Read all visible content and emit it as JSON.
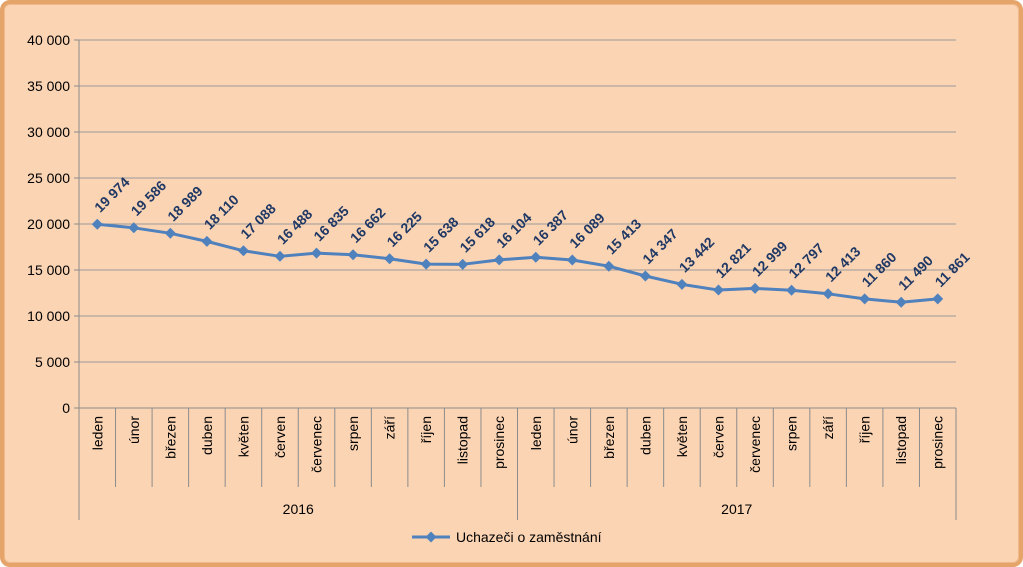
{
  "chart_data": {
    "type": "line",
    "title": "",
    "xlabel": "",
    "ylabel": "",
    "ylim": [
      0,
      40000
    ],
    "yticks": [
      0,
      5000,
      10000,
      15000,
      20000,
      25000,
      30000,
      35000,
      40000
    ],
    "ytick_labels": [
      "0",
      "5 000",
      "10 000",
      "15 000",
      "20 000",
      "25 000",
      "30 000",
      "35 000",
      "40 000"
    ],
    "grid": true,
    "legend_position": "bottom",
    "categories": [
      "leden",
      "únor",
      "březen",
      "duben",
      "květen",
      "červen",
      "červenec",
      "srpen",
      "září",
      "říjen",
      "listopad",
      "prosinec",
      "leden",
      "únor",
      "březen",
      "duben",
      "květen",
      "červen",
      "červenec",
      "srpen",
      "září",
      "říjen",
      "listopad",
      "prosinec"
    ],
    "groups": [
      {
        "label": "2016",
        "count": 12
      },
      {
        "label": "2017",
        "count": 12
      }
    ],
    "series": [
      {
        "name": "Uchazeči o zaměstnání",
        "values": [
          19974,
          19586,
          18989,
          18110,
          17088,
          16488,
          16835,
          16662,
          16225,
          15638,
          15618,
          16104,
          16387,
          16089,
          15413,
          14347,
          13442,
          12821,
          12999,
          12797,
          12413,
          11860,
          11490,
          11861
        ],
        "labels": [
          "19 974",
          "19 586",
          "18 989",
          "18 110",
          "17 088",
          "16 488",
          "16 835",
          "16 662",
          "16 225",
          "15 638",
          "15 618",
          "16 104",
          "16 387",
          "16 089",
          "15 413",
          "14 347",
          "13 442",
          "12 821",
          "12 999",
          "12 797",
          "12 413",
          "11 860",
          "11 490",
          "11 861"
        ],
        "color": "#4f81bd",
        "marker": "diamond"
      }
    ],
    "colors": {
      "plot_background": "#fbd4b4",
      "frame_border": "#e4a46a",
      "grid": "#9a9a9a",
      "axis": "#8c8c8c",
      "text": "#000000",
      "data_label": "#1f3864"
    }
  }
}
